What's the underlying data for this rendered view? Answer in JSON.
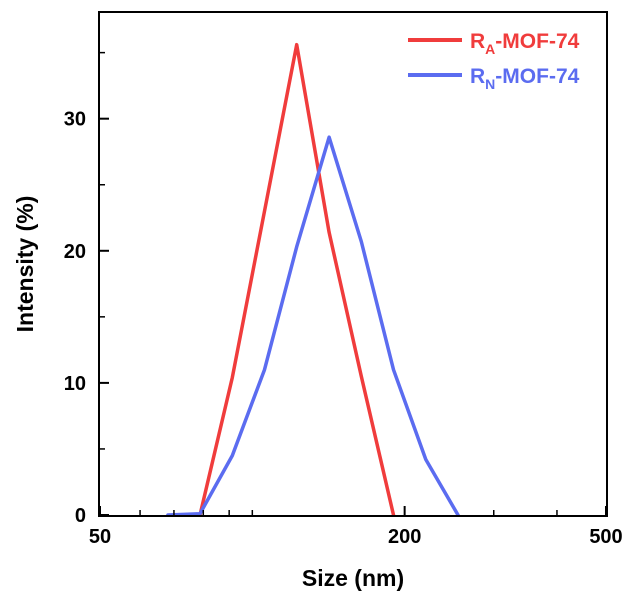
{
  "chart_data": {
    "type": "line",
    "xlabel": "Size (nm)",
    "ylabel": "Intensity (%)",
    "x_scale": "log",
    "xlim": [
      50,
      500
    ],
    "ylim": [
      0,
      38
    ],
    "x_ticks": [
      {
        "value": 50,
        "label": "50"
      },
      {
        "value": 200,
        "label": "200"
      },
      {
        "value": 500,
        "label": "500"
      }
    ],
    "y_ticks": [
      {
        "value": 0,
        "label": "0"
      },
      {
        "value": 10,
        "label": "10"
      },
      {
        "value": 20,
        "label": "20"
      },
      {
        "value": 30,
        "label": "30"
      }
    ],
    "legend": "top-right",
    "grid": false,
    "series": [
      {
        "name_main": "R",
        "name_sub": "A",
        "name_suffix": "-MOF-74",
        "color": "#f03c3c",
        "points": [
          [
            78.8,
            0
          ],
          [
            91.3,
            10.4
          ],
          [
            105.7,
            23.0
          ],
          [
            122.4,
            35.6
          ],
          [
            141.8,
            21.4
          ],
          [
            164.2,
            10.5
          ],
          [
            190.1,
            0
          ]
        ]
      },
      {
        "name_main": "R",
        "name_sub": "N",
        "name_suffix": "-MOF-74",
        "color": "#5b6cf0",
        "points": [
          [
            68.1,
            0
          ],
          [
            78.8,
            0.1
          ],
          [
            91.3,
            4.5
          ],
          [
            105.7,
            11.0
          ],
          [
            122.4,
            20.3
          ],
          [
            141.8,
            28.6
          ],
          [
            164.2,
            20.7
          ],
          [
            190.1,
            11.0
          ],
          [
            220.2,
            4.2
          ],
          [
            255.0,
            0
          ]
        ]
      }
    ]
  }
}
